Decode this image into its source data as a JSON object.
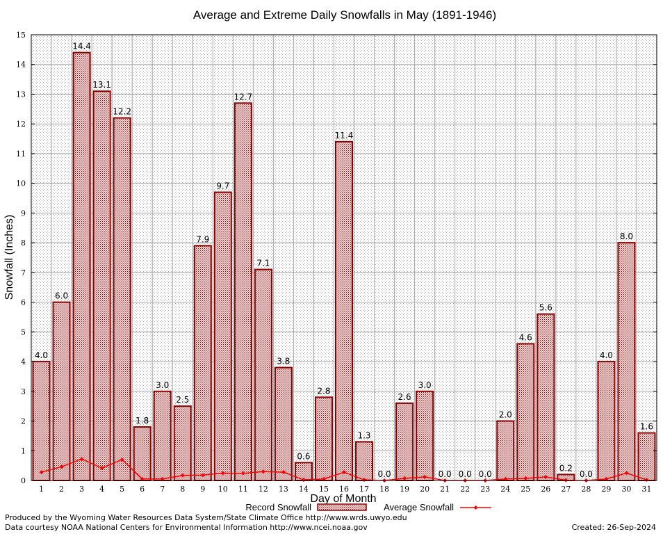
{
  "chart_data": {
    "type": "bar",
    "title": "Average and Extreme Daily Snowfalls in May (1891-1946)",
    "xlabel": "Day of Month",
    "ylabel": "Snowfall (Inches)",
    "ylim": [
      0,
      15
    ],
    "yticks": [
      "0",
      "1",
      "2",
      "3",
      "4",
      "5",
      "6",
      "7",
      "8",
      "9",
      "10",
      "11",
      "12",
      "13",
      "14",
      "15"
    ],
    "grid": true,
    "categories": [
      "1",
      "2",
      "3",
      "4",
      "5",
      "6",
      "7",
      "8",
      "9",
      "10",
      "11",
      "12",
      "13",
      "14",
      "15",
      "16",
      "17",
      "18",
      "19",
      "20",
      "21",
      "22",
      "23",
      "24",
      "25",
      "26",
      "27",
      "28",
      "29",
      "30",
      "31"
    ],
    "series": [
      {
        "name": "Record Snowfall",
        "type": "bar",
        "color": "#8b0000",
        "values": [
          4.0,
          6.0,
          14.4,
          13.1,
          12.2,
          1.8,
          3.0,
          2.5,
          7.9,
          9.7,
          12.7,
          7.1,
          3.8,
          0.6,
          2.8,
          11.4,
          1.3,
          0.0,
          2.6,
          3.0,
          0.0,
          0.0,
          0.0,
          2.0,
          4.6,
          5.6,
          0.2,
          0.0,
          4.0,
          8.0,
          1.6
        ],
        "labels": [
          "4.0",
          "6.0",
          "14.4",
          "13.1",
          "12.2",
          "1.8",
          "3.0",
          "2.5",
          "7.9",
          "9.7",
          "12.7",
          "7.1",
          "3.8",
          "0.6",
          "2.8",
          "11.4",
          "1.3",
          "0.0",
          "2.6",
          "3.0",
          "0.0",
          "0.0",
          "0.0",
          "2.0",
          "4.6",
          "5.6",
          "0.2",
          "0.0",
          "4.0",
          "8.0",
          "1.6"
        ]
      },
      {
        "name": "Average Snowfall",
        "type": "line",
        "color": "#ff0000",
        "values": [
          0.28,
          0.46,
          0.72,
          0.42,
          0.7,
          0.05,
          0.05,
          0.17,
          0.18,
          0.25,
          0.24,
          0.3,
          0.28,
          0.02,
          0.05,
          0.28,
          0.02,
          0.0,
          0.07,
          0.12,
          0.0,
          0.0,
          0.0,
          0.05,
          0.07,
          0.12,
          0.01,
          0.0,
          0.05,
          0.25,
          0.02
        ]
      }
    ],
    "legend": "bottom-center"
  },
  "footer": {
    "line1": "Produced by the Wyoming Water Resources Data System/State Climate Office http://www.wrds.uwyo.edu",
    "line2": "Data courtesy NOAA National Centers for Environmental Information http://www.ncei.noaa.gov",
    "created": "Created:  26-Sep-2024"
  }
}
